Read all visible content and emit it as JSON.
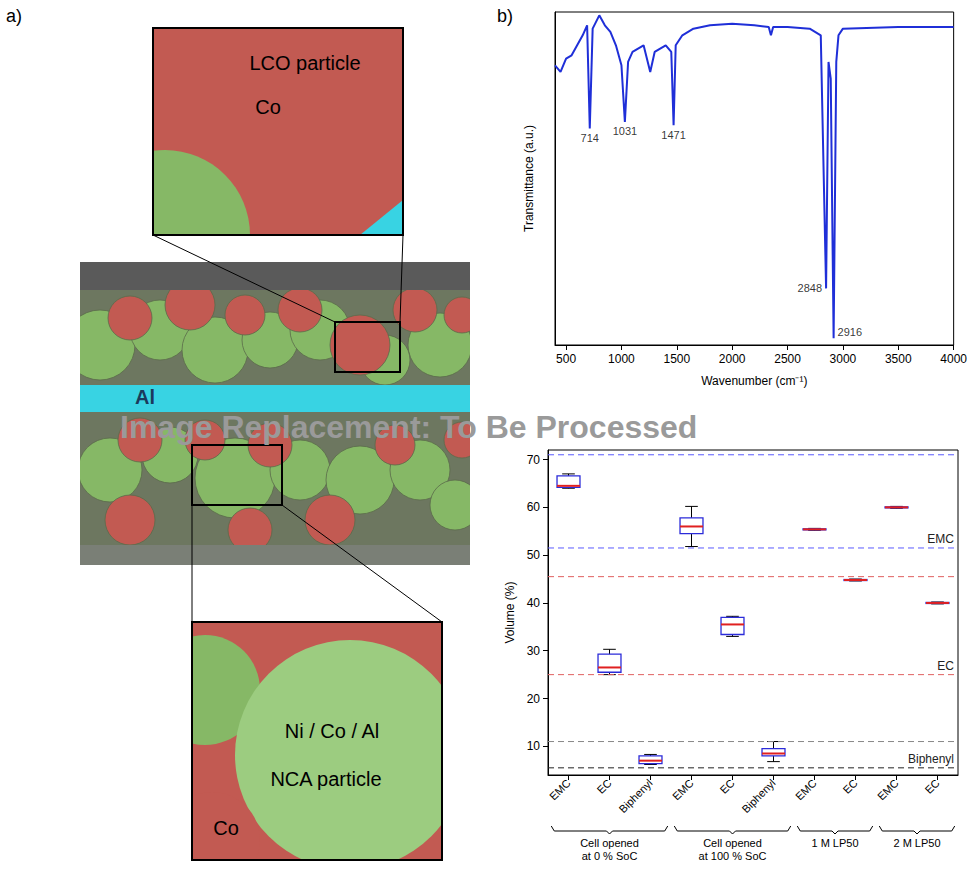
{
  "panel_labels": [
    "a)",
    "b)"
  ],
  "watermark": "Image Replacement: To Be Processed",
  "diagram": {
    "cross_section": {
      "labels": [
        "Al"
      ]
    },
    "top_inset": {
      "labels": [
        "LCO particle",
        "Co"
      ]
    },
    "bottom_inset": {
      "labels": [
        "Ni / Co / Al",
        "NCA particle",
        "Co"
      ]
    }
  },
  "chart_data": [
    {
      "type": "line",
      "x_label": "Wavenumber (cm⁻¹)",
      "y_label": "Transmittance (a.u.)",
      "x": [
        400,
        450,
        500,
        550,
        600,
        650,
        690,
        714,
        740,
        800,
        850,
        900,
        950,
        1000,
        1031,
        1060,
        1100,
        1150,
        1200,
        1260,
        1300,
        1350,
        1400,
        1450,
        1471,
        1490,
        1550,
        1650,
        1800,
        2000,
        2200,
        2330,
        2350,
        2370,
        2500,
        2700,
        2800,
        2848,
        2870,
        2890,
        2916,
        2940,
        2960,
        3000,
        3500,
        4000
      ],
      "values": [
        0.84,
        0.82,
        0.86,
        0.87,
        0.9,
        0.93,
        0.96,
        0.65,
        0.95,
        0.99,
        0.96,
        0.94,
        0.9,
        0.84,
        0.67,
        0.85,
        0.88,
        0.89,
        0.9,
        0.82,
        0.88,
        0.89,
        0.9,
        0.88,
        0.66,
        0.9,
        0.93,
        0.95,
        0.96,
        0.965,
        0.96,
        0.955,
        0.93,
        0.955,
        0.955,
        0.95,
        0.93,
        0.17,
        0.85,
        0.8,
        0.02,
        0.85,
        0.93,
        0.95,
        0.955,
        0.955
      ],
      "color": "#1f2fd8",
      "xlim": [
        400,
        4000
      ],
      "xticks": [
        500,
        1000,
        1500,
        2000,
        2500,
        3000,
        3500,
        4000
      ],
      "ylim": [
        0,
        1
      ],
      "tick_labels": "x",
      "grid": false,
      "annotations": [
        714,
        1031,
        1471,
        2848,
        2916
      ]
    },
    {
      "type": "boxplot",
      "y_label": "Volume (%)",
      "categories": [
        "EMC",
        "EC",
        "Biphenyl",
        "EMC",
        "EC",
        "Biphenyl",
        "EMC",
        "EC",
        "EMC",
        "EC"
      ],
      "groups": [
        {
          "name": "Cell opened at 0 % SoC",
          "count": 3
        },
        {
          "name": "Cell opened at 100 % SoC",
          "count": 3
        },
        {
          "name": "1 M LP50",
          "count": 2
        },
        {
          "name": "2 M LP50",
          "count": 2
        }
      ],
      "values": [
        {
          "min": 64,
          "q1": 64.2,
          "median": 64.5,
          "q3": 66.6,
          "max": 67
        },
        {
          "min": 25,
          "q1": 25.5,
          "median": 26.5,
          "q3": 29.3,
          "max": 30.3
        },
        {
          "min": 6.2,
          "q1": 6.4,
          "median": 7,
          "q3": 8,
          "max": 8.3
        },
        {
          "min": 51.8,
          "q1": 54.5,
          "median": 56,
          "q3": 57.8,
          "max": 60.2
        },
        {
          "min": 33,
          "q1": 33.4,
          "median": 35.5,
          "q3": 37,
          "max": 37.2
        },
        {
          "min": 6.8,
          "q1": 8,
          "median": 8.5,
          "q3": 9.5,
          "max": 11
        },
        {
          "min": 55.2,
          "q1": 55.3,
          "median": 55.4,
          "q3": 55.5,
          "max": 55.6
        },
        {
          "min": 44.6,
          "q1": 44.7,
          "median": 44.8,
          "q3": 44.9,
          "max": 45
        },
        {
          "min": 59.8,
          "q1": 59.9,
          "median": 60,
          "q3": 60.1,
          "max": 60.2
        },
        {
          "min": 39.8,
          "q1": 39.9,
          "median": 40,
          "q3": 40.1,
          "max": 40.2
        }
      ],
      "color": "#2b2bd9",
      "reference_lines": [
        {
          "name": "EMC",
          "values": [
            51.5,
            71
          ],
          "colors": [
            "#5b5bff",
            "#5b5bff"
          ]
        },
        {
          "name": "EC",
          "values": [
            25,
            45.5
          ],
          "colors": [
            "#e06060",
            "#e06060"
          ]
        },
        {
          "name": "Biphenyl",
          "values": [
            5.5,
            11
          ],
          "colors": [
            "#222222",
            "#888888"
          ]
        }
      ],
      "ylim": [
        4,
        72
      ],
      "yticks": [
        10,
        20,
        30,
        40,
        50,
        60,
        70
      ],
      "grid": false
    }
  ]
}
